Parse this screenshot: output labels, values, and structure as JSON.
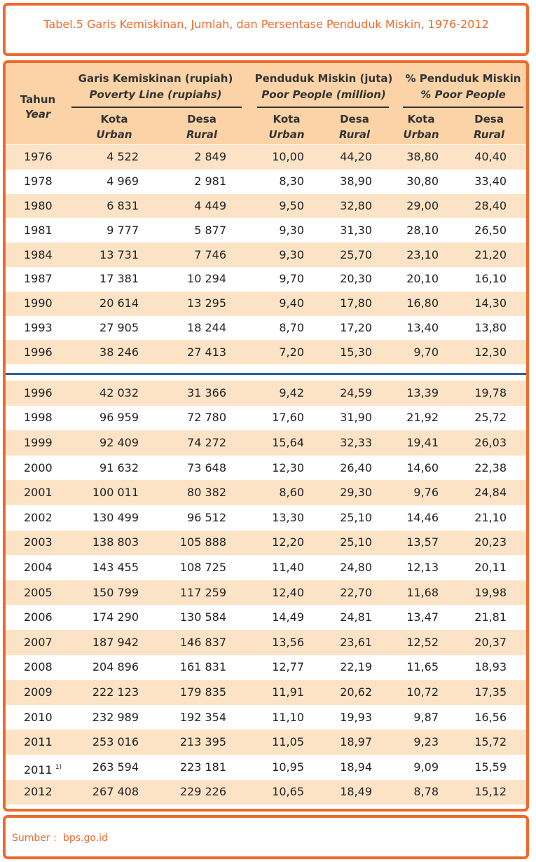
{
  "title": "Tabel.5  Garis Kemiskinan, Jumlah, dan Persentase Penduduk Miskin, 1976-2012",
  "table": {
    "header": {
      "year": {
        "id": "Tahun",
        "en": "Year"
      },
      "groups": [
        {
          "id": "Garis Kemiskinan (rupiah)",
          "en": "Poverty Line (rupiahs)",
          "columns": [
            {
              "id": "Kota",
              "en": "Urban"
            },
            {
              "id": "Desa",
              "en": "Rural"
            }
          ]
        },
        {
          "id": "Penduduk Miskin (juta)",
          "en": "Poor People (million)",
          "columns": [
            {
              "id": "Kota",
              "en": "Urban"
            },
            {
              "id": "Desa",
              "en": "Rural"
            }
          ]
        },
        {
          "id": "% Penduduk Miskin",
          "en": "% Poor People",
          "columns": [
            {
              "id": "Kota",
              "en": "Urban"
            },
            {
              "id": "Desa",
              "en": "Rural"
            }
          ]
        }
      ]
    },
    "blocks": [
      [
        [
          "1976",
          "4 522",
          "2 849",
          "10,00",
          "44,20",
          "38,80",
          "40,40"
        ],
        [
          "1978",
          "4 969",
          "2 981",
          "8,30",
          "38,90",
          "30,80",
          "33,40"
        ],
        [
          "1980",
          "6 831",
          "4 449",
          "9,50",
          "32,80",
          "29,00",
          "28,40"
        ],
        [
          "1981",
          "9 777",
          "5 877",
          "9,30",
          "31,30",
          "28,10",
          "26,50"
        ],
        [
          "1984",
          "13 731",
          "7 746",
          "9,30",
          "25,70",
          "23,10",
          "21,20"
        ],
        [
          "1987",
          "17 381",
          "10 294",
          "9,70",
          "20,30",
          "20,10",
          "16,10"
        ],
        [
          "1990",
          "20 614",
          "13 295",
          "9,40",
          "17,80",
          "16,80",
          "14,30"
        ],
        [
          "1993",
          "27 905",
          "18 244",
          "8,70",
          "17,20",
          "13,40",
          "13,80"
        ],
        [
          "1996",
          "38 246",
          "27 413",
          "7,20",
          "15,30",
          "9,70",
          "12,30"
        ]
      ],
      [
        [
          "1996",
          "42 032",
          "31 366",
          "9,42",
          "24,59",
          "13,39",
          "19,78"
        ],
        [
          "1998",
          "96 959",
          "72 780",
          "17,60",
          "31,90",
          "21,92",
          "25,72"
        ],
        [
          "1999",
          "92 409",
          "74 272",
          "15,64",
          "32,33",
          "19,41",
          "26,03"
        ],
        [
          "2000",
          "91 632",
          "73 648",
          "12,30",
          "26,40",
          "14,60",
          "22,38"
        ],
        [
          "2001",
          "100 011",
          "80 382",
          "8,60",
          "29,30",
          "9,76",
          "24,84"
        ],
        [
          "2002",
          "130 499",
          "96 512",
          "13,30",
          "25,10",
          "14,46",
          "21,10"
        ],
        [
          "2003",
          "138 803",
          "105 888",
          "12,20",
          "25,10",
          "13,57",
          "20,23"
        ],
        [
          "2004",
          "143 455",
          "108 725",
          "11,40",
          "24,80",
          "12,13",
          "20,11"
        ],
        [
          "2005",
          "150 799",
          "117 259",
          "12,40",
          "22,70",
          "11,68",
          "19,98"
        ],
        [
          "2006",
          "174 290",
          "130 584",
          "14,49",
          "24,81",
          "13,47",
          "21,81"
        ],
        [
          "2007",
          "187 942",
          "146 837",
          "13,56",
          "23,61",
          "12,52",
          "20,37"
        ],
        [
          "2008",
          "204 896",
          "161 831",
          "12,77",
          "22,19",
          "11,65",
          "18,93"
        ],
        [
          "2009",
          "222 123",
          "179 835",
          "11,91",
          "20,62",
          "10,72",
          "17,35"
        ],
        [
          "2010",
          "232 989",
          "192 354",
          "11,10",
          "19,93",
          "9,87",
          "16,56"
        ],
        [
          "2011",
          "253 016",
          "213 395",
          "11,05",
          "18,97",
          "9,23",
          "15,72"
        ],
        [
          {
            "text": "2011",
            "sup": "1)"
          },
          "263 594",
          "223 181",
          "10,95",
          "18,94",
          "9,09",
          "15,59"
        ],
        [
          "2012",
          "267 408",
          "229 226",
          "10,65",
          "18,49",
          "8,78",
          "15,12"
        ]
      ]
    ]
  },
  "footer": {
    "label": "Sumber :",
    "source": "bps.go.id"
  }
}
